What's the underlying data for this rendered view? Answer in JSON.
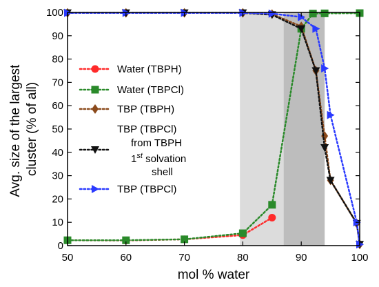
{
  "chart_data": {
    "type": "line",
    "xlabel": "mol % water",
    "ylabel_line1": "Avg. size of the largest",
    "ylabel_line2": "cluster (% of all)",
    "xlim": [
      50,
      100
    ],
    "ylim": [
      0,
      100
    ],
    "xticks": [
      50,
      60,
      70,
      80,
      90,
      100
    ],
    "yticks": [
      0,
      10,
      20,
      30,
      40,
      50,
      60,
      70,
      80,
      90,
      100
    ],
    "grid": false,
    "legend_position": "left",
    "shaded_regions": [
      {
        "x0": 79.5,
        "x1": 94,
        "color": "#dcdcdc"
      },
      {
        "x0": 87,
        "x1": 94,
        "color": "#bdbdbd"
      }
    ],
    "series": [
      {
        "name": "Water (TBPH)",
        "color": "#ff2a2a",
        "marker": "circle",
        "x": [
          50,
          60,
          70,
          80,
          85
        ],
        "y": [
          2.3,
          2.2,
          2.7,
          4.5,
          12
        ]
      },
      {
        "name": "Water (TBPCl)",
        "color": "#2a8a2a",
        "marker": "square",
        "x": [
          50,
          60,
          70,
          80,
          85,
          90,
          92,
          94,
          100
        ],
        "y": [
          2.3,
          2.3,
          2.7,
          5.3,
          17.5,
          93,
          99.5,
          99.6,
          99.7
        ]
      },
      {
        "name": "TBP (TBPH)",
        "color": "#8b4a1c",
        "marker": "diamond",
        "x": [
          50,
          60,
          70,
          80,
          85,
          90,
          92.5,
          94,
          95,
          99.5,
          100
        ],
        "y": [
          99.8,
          99.8,
          99.8,
          99.8,
          99.3,
          94,
          75,
          47,
          28,
          9.5,
          0.5
        ]
      },
      {
        "name_lines": [
          "TBP (TBPCl)",
          "from TBPH",
          "1st solvation",
          "shell"
        ],
        "name_sup": "st",
        "color": "#111111",
        "marker": "triangle-down",
        "x": [
          50,
          60,
          70,
          80,
          85,
          90,
          92.5,
          94,
          95,
          99.5,
          100
        ],
        "y": [
          99.8,
          99.8,
          99.8,
          99.8,
          99,
          93,
          75,
          42,
          28,
          9.5,
          0.5
        ]
      },
      {
        "name": "TBP (TBPCl)",
        "color": "#2a3aff",
        "marker": "triangle-right",
        "x": [
          50,
          60,
          70,
          80,
          85,
          90,
          92.5,
          94,
          95,
          99.5,
          100
        ],
        "y": [
          99.8,
          99.8,
          99.8,
          99.8,
          99.5,
          98,
          93,
          76,
          56,
          10,
          0.5
        ]
      }
    ]
  }
}
